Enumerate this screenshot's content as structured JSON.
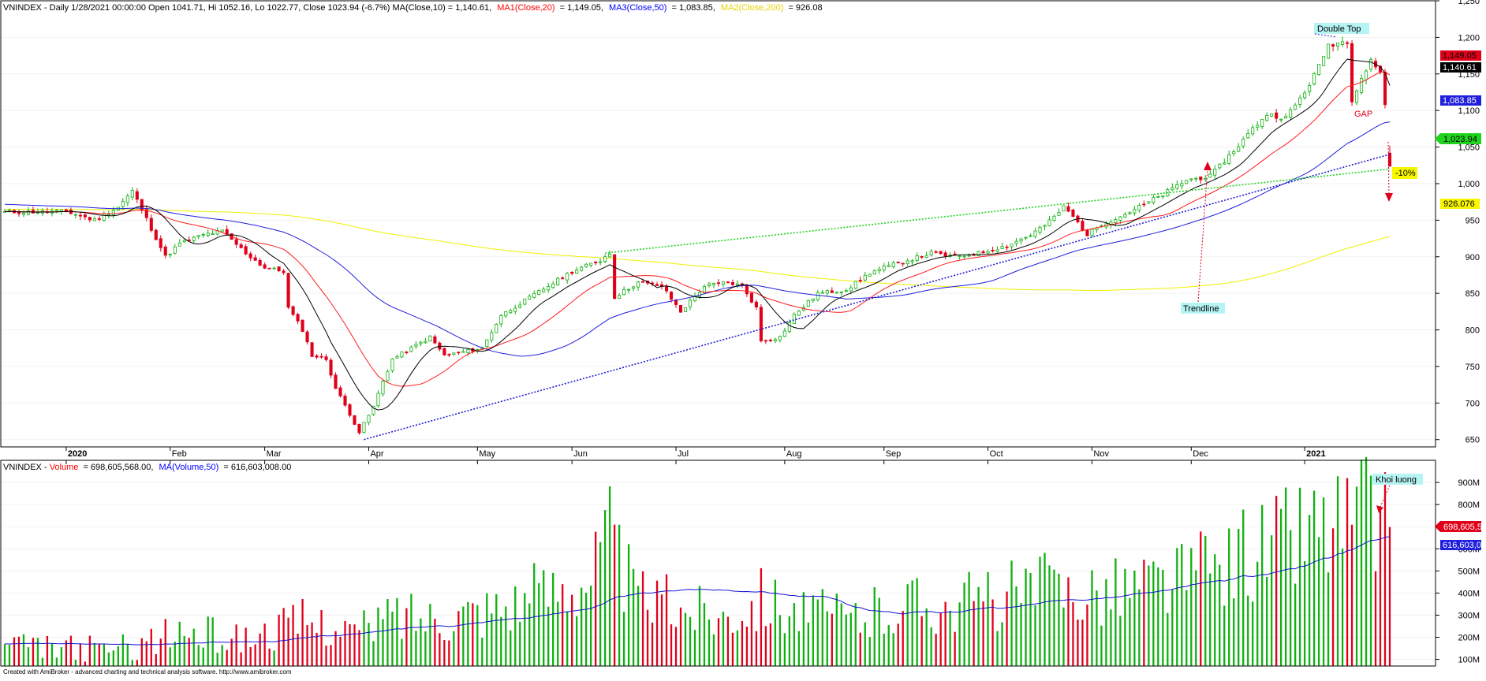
{
  "price_pane": {
    "header": {
      "prefix": "VNINDEX - Daily 1/28/2021 00:00:00 Open 1041.71, Hi 1052.16, Lo 1022.77, Close 1023.94 (-6.7%) MA(Close,10) = 1,140.61,",
      "ma1": "MA1(Close,20)",
      "ma1_value": "= 1,149.05,",
      "ma3": "MA3(Close,50)",
      "ma3_value": "= 1,083.85,",
      "ma2": "MA2(Close,200)",
      "ma2_value": "= 926.08"
    },
    "labels": {
      "current_close": "1,023.94",
      "ma20": "1,149.05",
      "ma10": "1,140.61",
      "ma50": "1,083.85",
      "ma200": "926.076"
    },
    "annotations": {
      "double_top": "Double Top",
      "gap": "GAP",
      "trendline": "Trendline",
      "drop": "-10%"
    }
  },
  "volume_pane": {
    "header": {
      "prefix": "VNINDEX - ",
      "volume": "Volume",
      "volume_value": "= 698,605,568.00,",
      "ma": "MA(Volume,50)",
      "ma_value": "= 616,603,008.00"
    },
    "labels": {
      "volume": "698,605,5",
      "ma": "616,603,0"
    },
    "annotation": "Khoi luong"
  },
  "footer": "Created with AmiBroker - advanced charting and technical analysis software. http://www.amibroker.com",
  "colors": {
    "up": "#10b010",
    "down": "#e0001a",
    "ma10": "#000000",
    "ma20": "#ff1c1c",
    "ma50": "#1f1fdd",
    "ma200": "#f0f000",
    "neckline": "#22d222",
    "trendline": "#1d1dd0",
    "vol_ma": "#1010d0",
    "annotation_bg": "#b6f4f4",
    "drop_bg": "#f7f700"
  },
  "chart_data": [
    {
      "type": "candlestick",
      "symbol": "VNINDEX",
      "period": "Daily",
      "ylim": [
        640,
        1250
      ],
      "y_ticks": [
        650,
        700,
        750,
        800,
        850,
        900,
        950,
        1000,
        1050,
        1100,
        1150,
        1200,
        1250
      ],
      "y_tick_labels": [
        "650",
        "700",
        "750",
        "800",
        "850",
        "900",
        "950",
        "1,000",
        "1,050",
        "1,100",
        "1,150",
        "1,200",
        "1,250"
      ],
      "x_labels": [
        {
          "date": "2020-01-02",
          "label": "2020",
          "bold": true
        },
        {
          "date": "2020-02-03",
          "label": "Feb"
        },
        {
          "date": "2020-03-02",
          "label": "Mar"
        },
        {
          "date": "2020-04-01",
          "label": "Apr"
        },
        {
          "date": "2020-05-04",
          "label": "May"
        },
        {
          "date": "2020-06-01",
          "label": "Jun"
        },
        {
          "date": "2020-07-01",
          "label": "Jul"
        },
        {
          "date": "2020-08-03",
          "label": "Aug"
        },
        {
          "date": "2020-09-01",
          "label": "Sep"
        },
        {
          "date": "2020-10-01",
          "label": "Oct"
        },
        {
          "date": "2020-11-02",
          "label": "Nov"
        },
        {
          "date": "2020-12-01",
          "label": "Dec"
        },
        {
          "date": "2021-01-04",
          "label": "2021",
          "bold": true
        }
      ],
      "date_range": [
        "2019-12-16",
        "2021-01-28"
      ],
      "close_anchors": [
        [
          "2019-12-16",
          961
        ],
        [
          "2020-01-02",
          962
        ],
        [
          "2020-01-10",
          950
        ],
        [
          "2020-01-17",
          968
        ],
        [
          "2020-01-22",
          990
        ],
        [
          "2020-01-31",
          900
        ],
        [
          "2020-02-05",
          918
        ],
        [
          "2020-02-12",
          930
        ],
        [
          "2020-02-18",
          935
        ],
        [
          "2020-02-25",
          905
        ],
        [
          "2020-03-02",
          885
        ],
        [
          "2020-03-06",
          880
        ],
        [
          "2020-03-09",
          830
        ],
        [
          "2020-03-12",
          800
        ],
        [
          "2020-03-16",
          765
        ],
        [
          "2020-03-19",
          760
        ],
        [
          "2020-03-23",
          720
        ],
        [
          "2020-03-26",
          685
        ],
        [
          "2020-03-30",
          660
        ],
        [
          "2020-04-02",
          695
        ],
        [
          "2020-04-06",
          730
        ],
        [
          "2020-04-08",
          760
        ],
        [
          "2020-04-14",
          775
        ],
        [
          "2020-04-20",
          790
        ],
        [
          "2020-04-23",
          765
        ],
        [
          "2020-04-29",
          770
        ],
        [
          "2020-05-05",
          775
        ],
        [
          "2020-05-11",
          820
        ],
        [
          "2020-05-18",
          840
        ],
        [
          "2020-05-25",
          860
        ],
        [
          "2020-06-01",
          880
        ],
        [
          "2020-06-09",
          895
        ],
        [
          "2020-06-11",
          905
        ],
        [
          "2020-06-12",
          845
        ],
        [
          "2020-06-19",
          865
        ],
        [
          "2020-06-26",
          860
        ],
        [
          "2020-07-02",
          825
        ],
        [
          "2020-07-09",
          860
        ],
        [
          "2020-07-16",
          865
        ],
        [
          "2020-07-21",
          860
        ],
        [
          "2020-07-24",
          830
        ],
        [
          "2020-07-27",
          785
        ],
        [
          "2020-07-31",
          790
        ],
        [
          "2020-08-05",
          820
        ],
        [
          "2020-08-12",
          850
        ],
        [
          "2020-08-20",
          855
        ],
        [
          "2020-08-27",
          878
        ],
        [
          "2020-09-01",
          885
        ],
        [
          "2020-09-08",
          895
        ],
        [
          "2020-09-15",
          905
        ],
        [
          "2020-09-22",
          900
        ],
        [
          "2020-09-29",
          905
        ],
        [
          "2020-10-07",
          915
        ],
        [
          "2020-10-14",
          930
        ],
        [
          "2020-10-20",
          948
        ],
        [
          "2020-10-23",
          968
        ],
        [
          "2020-10-27",
          955
        ],
        [
          "2020-10-30",
          930
        ],
        [
          "2020-11-04",
          945
        ],
        [
          "2020-11-10",
          955
        ],
        [
          "2020-11-16",
          968
        ],
        [
          "2020-11-23",
          985
        ],
        [
          "2020-11-30",
          1005
        ],
        [
          "2020-12-07",
          1010
        ],
        [
          "2020-12-14",
          1045
        ],
        [
          "2020-12-18",
          1075
        ],
        [
          "2020-12-23",
          1095
        ],
        [
          "2020-12-29",
          1090
        ],
        [
          "2021-01-04",
          1125
        ],
        [
          "2021-01-07",
          1160
        ],
        [
          "2021-01-11",
          1190
        ],
        [
          "2021-01-15",
          1195
        ],
        [
          "2021-01-18",
          1115
        ],
        [
          "2021-01-20",
          1145
        ],
        [
          "2021-01-21",
          1155
        ],
        [
          "2021-01-22",
          1170
        ],
        [
          "2021-01-26",
          1150
        ],
        [
          "2021-01-27",
          1110
        ],
        [
          "2021-01-28",
          1023.94
        ]
      ],
      "last_bar": {
        "date": "2021-01-28",
        "open": 1041.71,
        "high": 1052.16,
        "low": 1022.77,
        "close": 1023.94,
        "change_pct": -6.7
      },
      "series": [
        {
          "name": "MA(Close,10)",
          "period": 10,
          "last": 1140.61
        },
        {
          "name": "MA1(Close,20)",
          "period": 20,
          "last": 1149.05
        },
        {
          "name": "MA3(Close,50)",
          "period": 50,
          "last": 1083.85
        },
        {
          "name": "MA2(Close,200)",
          "period": 200,
          "last": 926.08
        }
      ],
      "lines": [
        {
          "kind": "trendline",
          "from": [
            "2020-03-31",
            650
          ],
          "to": [
            "2021-01-28",
            1040
          ]
        },
        {
          "kind": "neckline",
          "from": [
            "2020-06-10",
            905
          ],
          "to": [
            "2021-01-28",
            1020
          ]
        }
      ]
    },
    {
      "type": "bar",
      "name": "Volume",
      "ylim": [
        70,
        1000
      ],
      "units": "millions",
      "y_ticks": [
        100,
        200,
        300,
        400,
        500,
        600,
        700,
        800,
        900
      ],
      "y_tick_labels": [
        "100M",
        "200M",
        "300M",
        "400M",
        "500M",
        "600M",
        "700M",
        "800M",
        "900M"
      ],
      "volume_anchors": [
        [
          "2019-12-16",
          170
        ],
        [
          "2020-01-10",
          160
        ],
        [
          "2020-01-22",
          170
        ],
        [
          "2020-02-05",
          240
        ],
        [
          "2020-02-25",
          210
        ],
        [
          "2020-03-12",
          290
        ],
        [
          "2020-03-20",
          280
        ],
        [
          "2020-03-30",
          240
        ],
        [
          "2020-04-08",
          330
        ],
        [
          "2020-04-20",
          320
        ],
        [
          "2020-05-05",
          360
        ],
        [
          "2020-05-20",
          420
        ],
        [
          "2020-06-05",
          540
        ],
        [
          "2020-06-11",
          720
        ],
        [
          "2020-06-18",
          420
        ],
        [
          "2020-07-01",
          370
        ],
        [
          "2020-07-15",
          330
        ],
        [
          "2020-07-27",
          420
        ],
        [
          "2020-08-10",
          330
        ],
        [
          "2020-08-25",
          310
        ],
        [
          "2020-09-08",
          390
        ],
        [
          "2020-09-22",
          380
        ],
        [
          "2020-10-07",
          420
        ],
        [
          "2020-10-20",
          460
        ],
        [
          "2020-10-28",
          450
        ],
        [
          "2020-11-10",
          460
        ],
        [
          "2020-11-25",
          500
        ],
        [
          "2020-12-08",
          560
        ],
        [
          "2020-12-18",
          640
        ],
        [
          "2021-01-05",
          760
        ],
        [
          "2021-01-14",
          780
        ],
        [
          "2021-01-21",
          830
        ],
        [
          "2021-01-27",
          740
        ],
        [
          "2021-01-28",
          698.6
        ]
      ],
      "ma_last": 616.6
    }
  ]
}
